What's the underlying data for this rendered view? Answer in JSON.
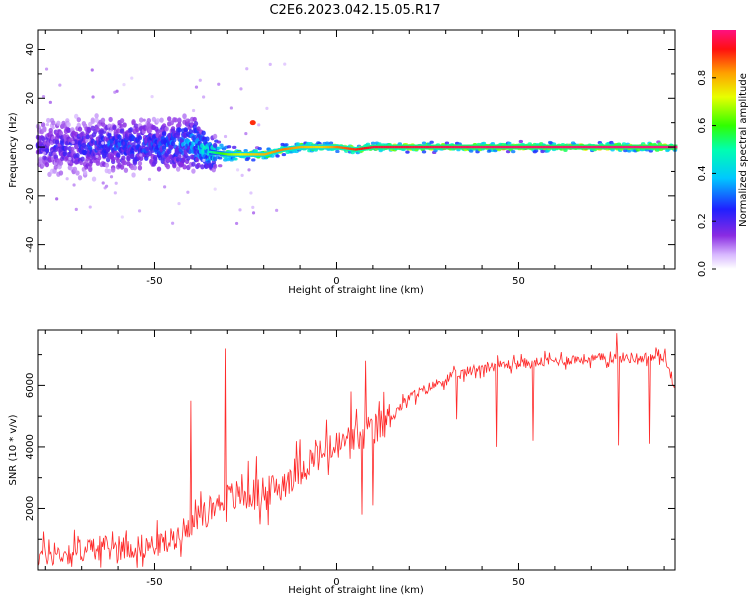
{
  "title": "C2E6.2023.042.15.05.R17",
  "colors": {
    "line": "#ff2a2a",
    "axis": "#000000",
    "background": "#ffffff"
  },
  "chart_data": [
    {
      "type": "heatmap",
      "xlabel": "Height of straight line (km)",
      "ylabel": "Frequency (Hz)",
      "xlim": [
        -82,
        93
      ],
      "ylim": [
        -50,
        48
      ],
      "x_ticks": [
        -50,
        0,
        50
      ],
      "y_ticks": [
        -40,
        -20,
        0,
        20,
        40
      ],
      "colorbar": {
        "label": "Normalized spectral amplitude",
        "range": [
          0,
          1
        ],
        "ticks": [
          "0.0",
          "0.2",
          "0.4",
          "0.6",
          "0.8"
        ],
        "colormap": "rainbow"
      },
      "grid": false,
      "ridge": {
        "x": [
          -82,
          -70,
          -60,
          -50,
          -40,
          -35,
          -30,
          -25,
          -20,
          -15,
          -10,
          -5,
          0,
          5,
          10,
          20,
          40,
          60,
          93
        ],
        "freq": [
          0,
          0,
          1,
          0,
          2,
          -2,
          -3,
          -3,
          -3,
          -1,
          0,
          0,
          0,
          -1,
          0,
          0,
          0,
          0,
          0
        ],
        "spread": [
          10,
          10,
          9,
          9,
          10,
          6,
          3,
          2,
          2,
          2,
          2,
          2,
          1.5,
          1.5,
          1.5,
          1.5,
          1.5,
          1.5,
          1.5
        ],
        "amplitude": [
          0.2,
          0.25,
          0.3,
          0.3,
          0.35,
          0.5,
          0.65,
          0.75,
          0.8,
          0.85,
          0.8,
          0.75,
          0.85,
          0.9,
          0.95,
          0.95,
          0.98,
          0.98,
          1.0
        ]
      }
    },
    {
      "type": "line",
      "xlabel": "Height of straight line (km)",
      "ylabel": "SNR (10 * v/v)",
      "xlim": [
        -82,
        93
      ],
      "ylim": [
        0,
        7800
      ],
      "x_ticks": [
        -50,
        0,
        50
      ],
      "y_ticks": [
        2000,
        4000,
        6000
      ],
      "grid": false,
      "series": [
        {
          "x": [
            -82,
            -75,
            -70,
            -65,
            -60,
            -55,
            -50,
            -45,
            -40,
            -35,
            -30,
            -25,
            -20,
            -15,
            -10,
            -5,
            0,
            5,
            10,
            15,
            20,
            25,
            30,
            35,
            40,
            45,
            50,
            55,
            60,
            65,
            70,
            75,
            80,
            85,
            90,
            93
          ],
          "y": [
            500,
            520,
            650,
            700,
            720,
            750,
            800,
            1000,
            1500,
            2000,
            2300,
            2500,
            2400,
            2800,
            3300,
            3700,
            4000,
            4300,
            4500,
            5000,
            5600,
            5900,
            6200,
            6400,
            6600,
            6650,
            6700,
            6750,
            6800,
            6850,
            6850,
            6900,
            6900,
            6900,
            6950,
            6000
          ],
          "spikes": [
            {
              "x": -40,
              "y": 5500
            },
            {
              "x": -30.5,
              "y": 7200
            },
            {
              "x": -22,
              "y": 3700
            },
            {
              "x": 8,
              "y": 6800
            },
            {
              "x": 4,
              "y": 5800
            },
            {
              "x": 7,
              "y": 1800
            },
            {
              "x": 10,
              "y": 2100
            },
            {
              "x": 33,
              "y": 4900
            },
            {
              "x": 44,
              "y": 4000
            },
            {
              "x": 54,
              "y": 4200
            },
            {
              "x": 77,
              "y": 7700
            },
            {
              "x": 77.5,
              "y": 4050
            },
            {
              "x": 86,
              "y": 4100
            }
          ]
        }
      ]
    }
  ]
}
